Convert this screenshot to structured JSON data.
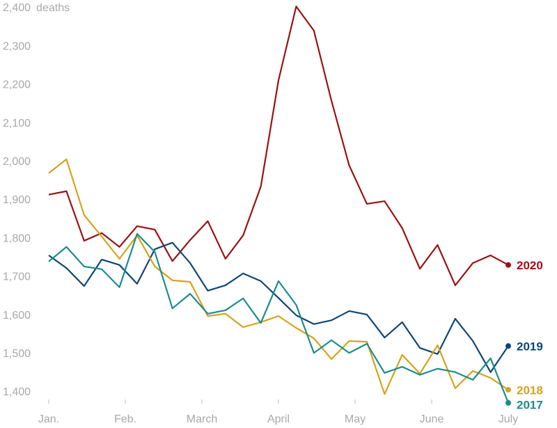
{
  "chart_data": {
    "type": "line",
    "ylabel": "deaths",
    "x": [
      1,
      1.231,
      1.462,
      1.692,
      1.923,
      2.154,
      2.385,
      2.615,
      2.846,
      3.077,
      3.308,
      3.538,
      3.769,
      4,
      4.231,
      4.462,
      4.692,
      4.923,
      5.154,
      5.385,
      5.615,
      5.846,
      6.077,
      6.308,
      6.538,
      6.769,
      7
    ],
    "xlim": [
      1,
      7
    ],
    "xticks": [
      {
        "value": 1,
        "label": "Jan."
      },
      {
        "value": 2,
        "label": "Feb."
      },
      {
        "value": 3,
        "label": "March"
      },
      {
        "value": 4,
        "label": "April"
      },
      {
        "value": 5,
        "label": "May"
      },
      {
        "value": 6,
        "label": "June"
      },
      {
        "value": 7,
        "label": "July"
      }
    ],
    "ylim": [
      1380,
      2400
    ],
    "yticks": [
      {
        "value": 1400,
        "label": "1,400"
      },
      {
        "value": 1500,
        "label": "1,500"
      },
      {
        "value": 1600,
        "label": "1,600"
      },
      {
        "value": 1700,
        "label": "1,700"
      },
      {
        "value": 1800,
        "label": "1,800"
      },
      {
        "value": 1900,
        "label": "1,900"
      },
      {
        "value": 2000,
        "label": "2,000"
      },
      {
        "value": 2100,
        "label": "2,100"
      },
      {
        "value": 2200,
        "label": "2,200"
      },
      {
        "value": 2300,
        "label": "2,300"
      },
      {
        "value": 2400,
        "label": "2,400"
      }
    ],
    "grid": false,
    "series": [
      {
        "name": "2020",
        "color": "#9b1111",
        "values": [
          1915,
          1924,
          1795,
          1815,
          1779,
          1833,
          1824,
          1742,
          1797,
          1846,
          1748,
          1809,
          1936,
          2213,
          2405,
          2342,
          2159,
          1991,
          1891,
          1898,
          1828,
          1722,
          1784,
          1679,
          1737,
          1757,
          1732
        ]
      },
      {
        "name": "2019",
        "color": "#0e4676",
        "values": [
          1757,
          1724,
          1677,
          1746,
          1732,
          1683,
          1773,
          1790,
          1737,
          1665,
          1679,
          1710,
          1690,
          1646,
          1601,
          1578,
          1588,
          1612,
          1603,
          1543,
          1583,
          1516,
          1500,
          1592,
          1534,
          1453,
          1521
        ]
      },
      {
        "name": "2018",
        "color": "#d6a21a",
        "values": [
          1971,
          2007,
          1862,
          1806,
          1748,
          1809,
          1728,
          1692,
          1688,
          1599,
          1605,
          1570,
          1583,
          1599,
          1568,
          1541,
          1487,
          1534,
          1532,
          1396,
          1498,
          1449,
          1523,
          1411,
          1456,
          1438,
          1407
        ]
      },
      {
        "name": "2017",
        "color": "#1a8c8f",
        "values": [
          1741,
          1779,
          1728,
          1721,
          1674,
          1813,
          1766,
          1619,
          1657,
          1605,
          1614,
          1645,
          1581,
          1690,
          1628,
          1503,
          1536,
          1503,
          1527,
          1451,
          1467,
          1446,
          1462,
          1453,
          1433,
          1489,
          1373
        ]
      }
    ]
  }
}
